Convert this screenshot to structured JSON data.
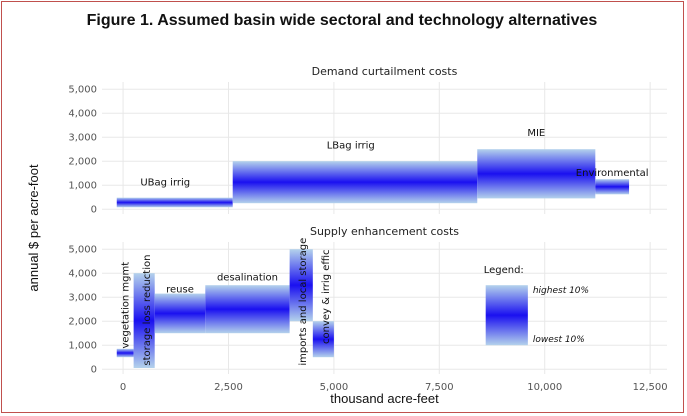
{
  "figure_title": "Figure 1. Assumed basin wide sectoral and technology alternatives",
  "chart_data": {
    "type": "bar",
    "subtype": "variable-width cost bands (two panels)",
    "xlabel": "thousand acre-feet",
    "ylabel": "annual $ per acre-foot",
    "x_ticks": [
      "0",
      "2,500",
      "5,000",
      "7,500",
      "10,000",
      "12,500"
    ],
    "y_ticks": [
      "0",
      "1,000",
      "2,000",
      "3,000",
      "4,000",
      "5,000"
    ],
    "xlim": [
      -500,
      12900
    ],
    "ylim": [
      -200,
      5300
    ],
    "grid": true,
    "panels": [
      {
        "title": "Demand curtailment costs",
        "series": [
          {
            "label": "UBag irrig",
            "x_start": -150,
            "x_end": 2600,
            "y_low": 80,
            "y_high": 480
          },
          {
            "label": "LBag irrig",
            "x_start": 2600,
            "x_end": 8400,
            "y_low": 250,
            "y_high": 2000
          },
          {
            "label": "MIE",
            "x_start": 8400,
            "x_end": 11200,
            "y_low": 450,
            "y_high": 2500
          },
          {
            "label": "Environmental",
            "x_start": 11200,
            "x_end": 12000,
            "y_low": 620,
            "y_high": 1250
          }
        ]
      },
      {
        "title": "Supply enhancement costs",
        "series": [
          {
            "label": "vegetation mgmt",
            "x_start": -150,
            "x_end": 250,
            "y_low": 500,
            "y_high": 850
          },
          {
            "label": "storage loss reduction",
            "x_start": 250,
            "x_end": 750,
            "y_low": 50,
            "y_high": 4000
          },
          {
            "label": "reuse",
            "x_start": 750,
            "x_end": 1950,
            "y_low": 1500,
            "y_high": 3150
          },
          {
            "label": "desalination",
            "x_start": 1950,
            "x_end": 3950,
            "y_low": 1500,
            "y_high": 3500
          },
          {
            "label": "imports and local storage",
            "x_start": 3950,
            "x_end": 4500,
            "y_low": 2000,
            "y_high": 5000
          },
          {
            "label": "convey & irrig effic",
            "x_start": 4500,
            "x_end": 5000,
            "y_low": 500,
            "y_high": 2000
          }
        ],
        "legend": {
          "title": "Legend:",
          "x_start": 8600,
          "x_end": 9600,
          "y_low": 1000,
          "y_high": 3500,
          "high_label": "highest 10%",
          "low_label": "lowest 10%"
        }
      }
    ]
  },
  "colors": {
    "band_edge": "#b4d2ec",
    "band_center": "#1a10f0",
    "frame": "#c0504d",
    "grid": "#e8e8e8"
  }
}
